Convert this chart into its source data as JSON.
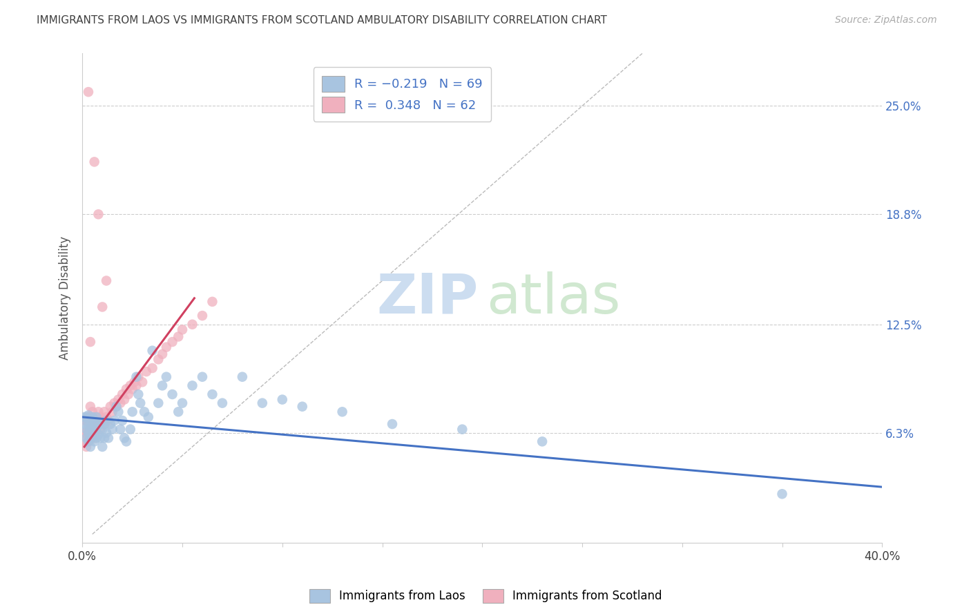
{
  "title": "IMMIGRANTS FROM LAOS VS IMMIGRANTS FROM SCOTLAND AMBULATORY DISABILITY CORRELATION CHART",
  "source": "Source: ZipAtlas.com",
  "ylabel": "Ambulatory Disability",
  "xlim": [
    0.0,
    0.4
  ],
  "ylim": [
    0.0,
    0.28
  ],
  "yticks": [
    0.063,
    0.125,
    0.188,
    0.25
  ],
  "ytick_labels": [
    "6.3%",
    "12.5%",
    "18.8%",
    "25.0%"
  ],
  "laos_color": "#a8c4e0",
  "scotland_color": "#f0b0be",
  "laos_line_color": "#4472c4",
  "scotland_line_color": "#d04060",
  "background_color": "#ffffff",
  "grid_color": "#cccccc",
  "laos_x": [
    0.001,
    0.001,
    0.002,
    0.002,
    0.002,
    0.003,
    0.003,
    0.003,
    0.003,
    0.004,
    0.004,
    0.004,
    0.004,
    0.005,
    0.005,
    0.005,
    0.006,
    0.006,
    0.006,
    0.007,
    0.007,
    0.007,
    0.008,
    0.008,
    0.009,
    0.009,
    0.01,
    0.01,
    0.011,
    0.011,
    0.012,
    0.012,
    0.013,
    0.014,
    0.015,
    0.016,
    0.017,
    0.018,
    0.019,
    0.02,
    0.021,
    0.022,
    0.024,
    0.025,
    0.027,
    0.028,
    0.029,
    0.031,
    0.033,
    0.035,
    0.038,
    0.04,
    0.042,
    0.045,
    0.048,
    0.05,
    0.055,
    0.06,
    0.065,
    0.07,
    0.08,
    0.09,
    0.1,
    0.11,
    0.13,
    0.155,
    0.19,
    0.23,
    0.35
  ],
  "laos_y": [
    0.068,
    0.072,
    0.06,
    0.065,
    0.072,
    0.058,
    0.063,
    0.068,
    0.073,
    0.055,
    0.06,
    0.065,
    0.07,
    0.06,
    0.065,
    0.072,
    0.058,
    0.063,
    0.07,
    0.06,
    0.065,
    0.072,
    0.062,
    0.068,
    0.06,
    0.068,
    0.055,
    0.065,
    0.06,
    0.068,
    0.063,
    0.07,
    0.06,
    0.068,
    0.065,
    0.07,
    0.078,
    0.075,
    0.065,
    0.07,
    0.06,
    0.058,
    0.065,
    0.075,
    0.095,
    0.085,
    0.08,
    0.075,
    0.072,
    0.11,
    0.08,
    0.09,
    0.095,
    0.085,
    0.075,
    0.08,
    0.09,
    0.095,
    0.085,
    0.08,
    0.095,
    0.08,
    0.082,
    0.078,
    0.075,
    0.068,
    0.065,
    0.058,
    0.028
  ],
  "scotland_x": [
    0.001,
    0.001,
    0.001,
    0.002,
    0.002,
    0.002,
    0.003,
    0.003,
    0.003,
    0.004,
    0.004,
    0.004,
    0.004,
    0.005,
    0.005,
    0.005,
    0.006,
    0.006,
    0.007,
    0.007,
    0.008,
    0.008,
    0.009,
    0.009,
    0.01,
    0.011,
    0.011,
    0.012,
    0.013,
    0.014,
    0.015,
    0.016,
    0.017,
    0.018,
    0.019,
    0.02,
    0.021,
    0.022,
    0.023,
    0.024,
    0.025,
    0.026,
    0.027,
    0.028,
    0.03,
    0.032,
    0.035,
    0.038,
    0.04,
    0.042,
    0.045,
    0.048,
    0.05,
    0.055,
    0.06,
    0.065,
    0.01,
    0.012,
    0.008,
    0.006,
    0.003,
    0.004
  ],
  "scotland_y": [
    0.058,
    0.063,
    0.07,
    0.055,
    0.063,
    0.07,
    0.058,
    0.065,
    0.072,
    0.06,
    0.065,
    0.072,
    0.078,
    0.062,
    0.068,
    0.075,
    0.06,
    0.068,
    0.065,
    0.07,
    0.068,
    0.075,
    0.065,
    0.072,
    0.07,
    0.068,
    0.075,
    0.072,
    0.07,
    0.078,
    0.075,
    0.08,
    0.078,
    0.082,
    0.08,
    0.085,
    0.082,
    0.088,
    0.085,
    0.09,
    0.088,
    0.092,
    0.09,
    0.095,
    0.092,
    0.098,
    0.1,
    0.105,
    0.108,
    0.112,
    0.115,
    0.118,
    0.122,
    0.125,
    0.13,
    0.138,
    0.135,
    0.15,
    0.188,
    0.218,
    0.258,
    0.115
  ],
  "laos_line": {
    "x0": 0.0,
    "x1": 0.4,
    "y0": 0.072,
    "y1": 0.032
  },
  "scotland_line": {
    "x0": 0.001,
    "x1": 0.056,
    "y0": 0.055,
    "y1": 0.14
  },
  "diag_line": {
    "x0": 0.005,
    "x1": 0.28,
    "y0": 0.005,
    "y1": 0.28
  },
  "legend_upper": [
    {
      "color": "#a8c4e0",
      "text_r": "-0.219",
      "text_n": "69"
    },
    {
      "color": "#f0b0be",
      "text_r": "0.348",
      "text_n": "62"
    }
  ],
  "legend_bottom": [
    {
      "color": "#a8c4e0",
      "label": "Immigrants from Laos"
    },
    {
      "color": "#f0b0be",
      "label": "Immigrants from Scotland"
    }
  ]
}
